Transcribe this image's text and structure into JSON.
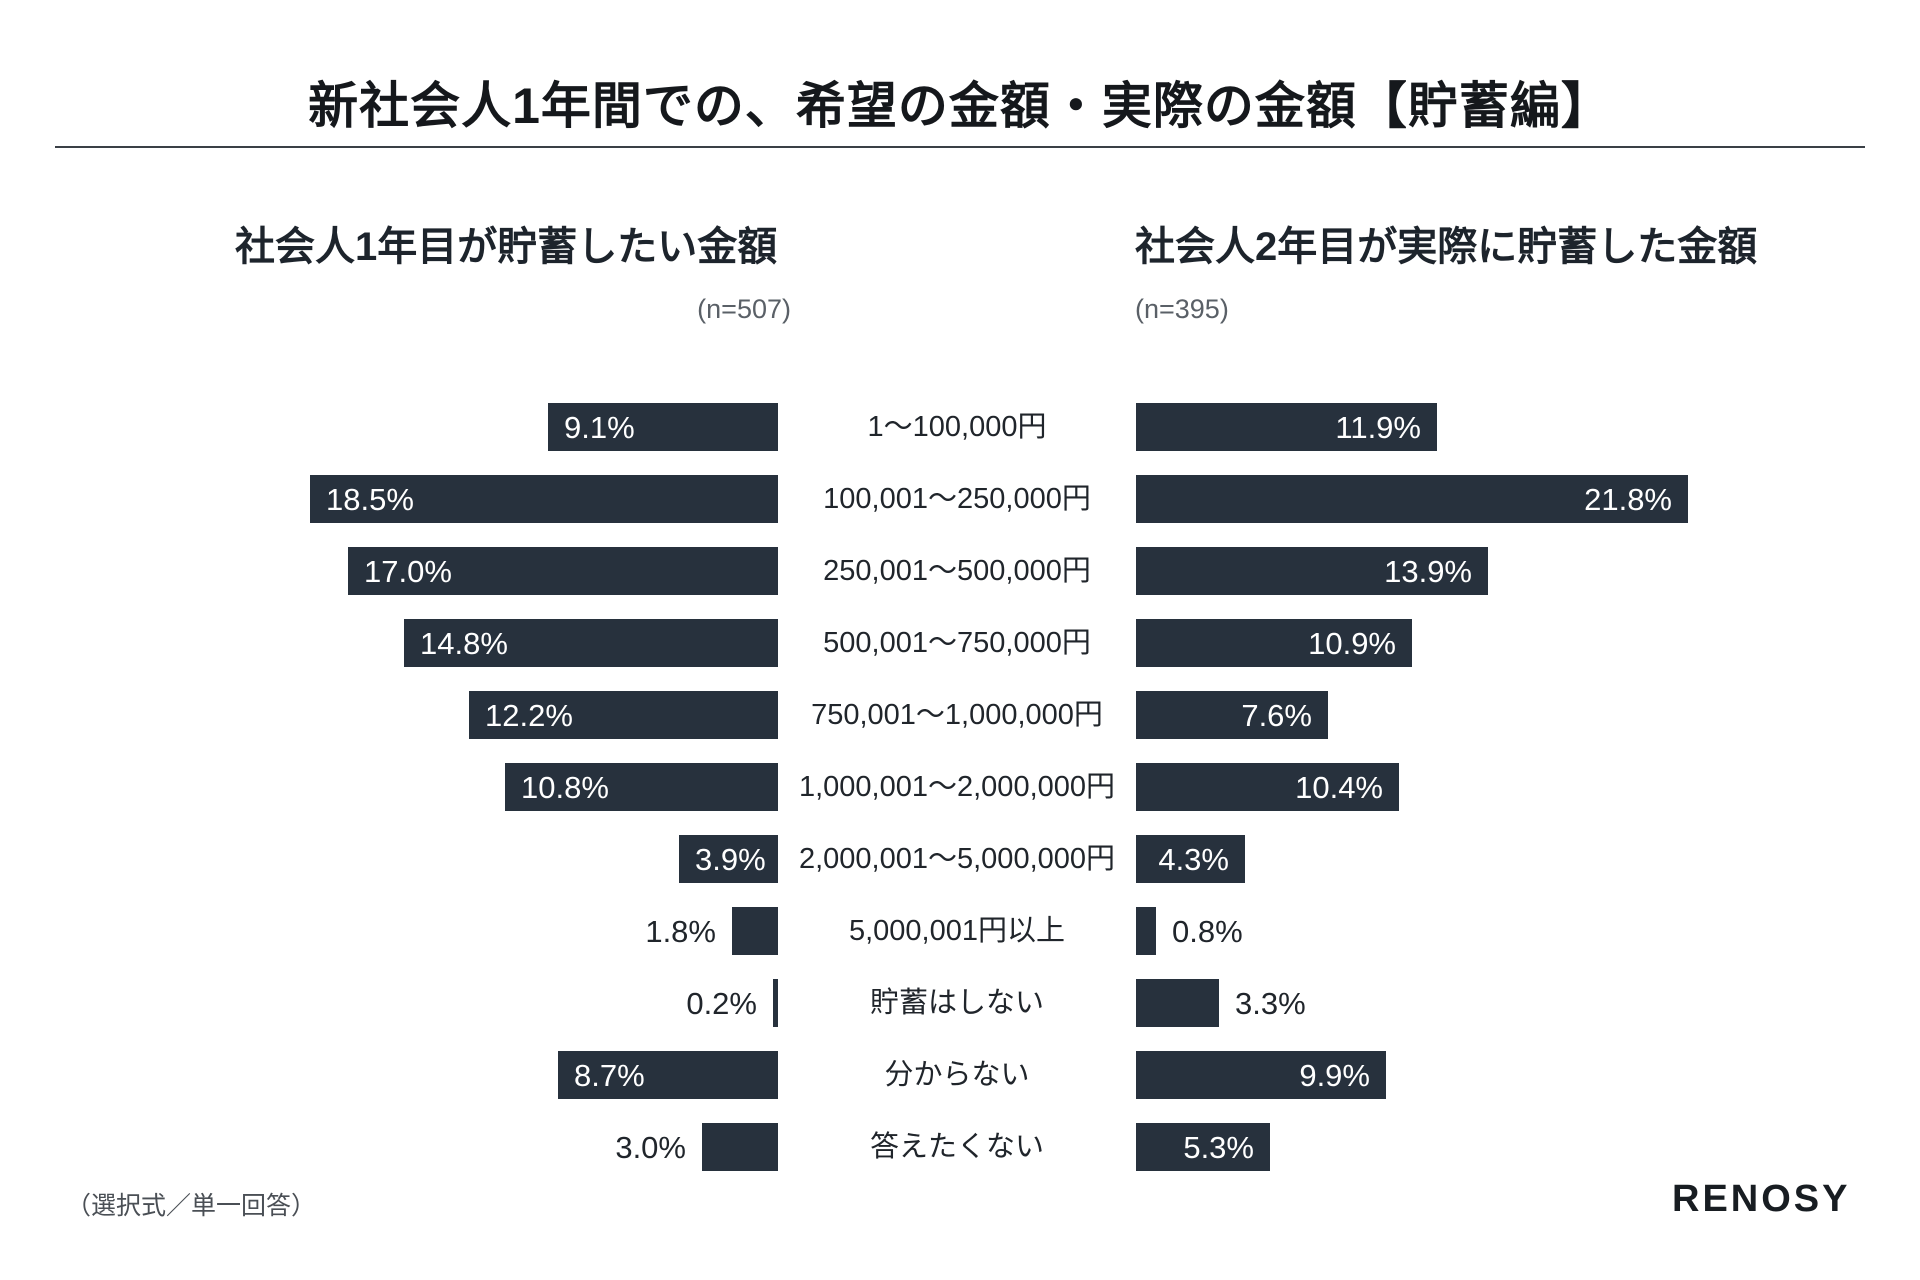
{
  "page": {
    "title": "新社会人1年間での、希望の金額・実際の金額【貯蓄編】",
    "footer_note": "（選択式／単一回答）",
    "logo": "RENOSY"
  },
  "colors": {
    "bar": "#27313d",
    "title_text": "#15181c",
    "label_text": "#20252b",
    "muted_text": "#5a6067",
    "value_inside": "#ffffff"
  },
  "chart_data": {
    "type": "bar",
    "orientation": "horizontal-butterfly",
    "title": "新社会人1年間での、希望の金額・実際の金額【貯蓄編】",
    "categories": [
      "1〜100,000円",
      "100,001〜250,000円",
      "250,001〜500,000円",
      "500,001〜750,000円",
      "750,001〜1,000,000円",
      "1,000,001〜2,000,000円",
      "2,000,001〜5,000,000円",
      "5,000,001円以上",
      "貯蓄はしない",
      "分からない",
      "答えたくない"
    ],
    "series": [
      {
        "name": "社会人1年目が貯蓄したい金額",
        "sample": "(n=507)",
        "side": "left",
        "values": [
          9.1,
          18.5,
          17.0,
          14.8,
          12.2,
          10.8,
          3.9,
          1.8,
          0.2,
          8.7,
          3.0
        ],
        "labels": [
          "9.1%",
          "18.5%",
          "17.0%",
          "14.8%",
          "12.2%",
          "10.8%",
          "3.9%",
          "1.8%",
          "0.2%",
          "8.7%",
          "3.0%"
        ]
      },
      {
        "name": "社会人2年目が実際に貯蓄した金額",
        "sample": "(n=395)",
        "side": "right",
        "values": [
          11.9,
          21.8,
          13.9,
          10.9,
          7.6,
          10.4,
          4.3,
          0.8,
          3.3,
          9.9,
          5.3
        ],
        "labels": [
          "11.9%",
          "21.8%",
          "13.9%",
          "10.9%",
          "7.6%",
          "10.4%",
          "4.3%",
          "0.8%",
          "3.3%",
          "9.9%",
          "5.3%"
        ]
      }
    ],
    "value_axis": {
      "unit": "%",
      "max_shown": 21.8
    },
    "grid": false,
    "legend_position": "section-headers-above-columns"
  }
}
